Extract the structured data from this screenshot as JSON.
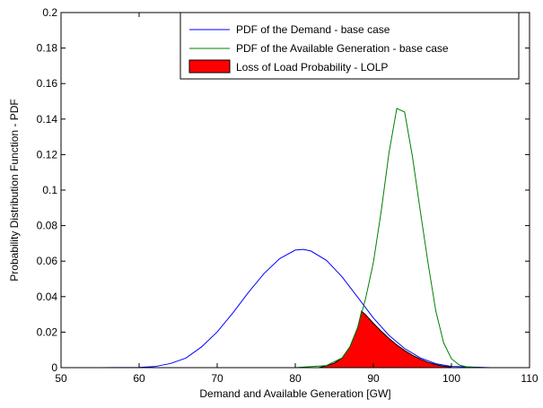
{
  "chart_data": {
    "type": "line",
    "title": "",
    "xlabel": "Demand and Available Generation [GW]",
    "ylabel": "Probability Distribution Function - PDF",
    "xlim": [
      50,
      110
    ],
    "ylim": [
      0,
      0.2
    ],
    "x_ticks": [
      50,
      60,
      70,
      80,
      90,
      100,
      110
    ],
    "y_ticks": [
      0,
      0.02,
      0.04,
      0.06,
      0.08,
      0.1,
      0.12,
      0.14,
      0.16,
      0.18,
      0.2
    ],
    "x_tick_labels": [
      "50",
      "60",
      "70",
      "80",
      "90",
      "100",
      "110"
    ],
    "y_tick_labels": [
      "0",
      "0.02",
      "0.04",
      "0.06",
      "0.08",
      "0.1",
      "0.12",
      "0.14",
      "0.16",
      "0.18",
      "0.2"
    ],
    "grid": false,
    "legend_position": "top-right",
    "series": [
      {
        "name": "PDF of the Demand - base case",
        "kind": "line",
        "color": "#0000ff",
        "x": [
          50,
          55,
          60,
          62,
          64,
          66,
          68,
          70,
          72,
          74,
          76,
          78,
          80,
          81,
          82,
          84,
          86,
          88,
          90,
          92,
          94,
          96,
          98,
          100,
          105,
          110
        ],
        "y": [
          0.0,
          0.0,
          0.0001,
          0.0006,
          0.0023,
          0.0054,
          0.0117,
          0.0201,
          0.0308,
          0.0424,
          0.053,
          0.0614,
          0.0662,
          0.0666,
          0.0657,
          0.0604,
          0.0511,
          0.0396,
          0.028,
          0.0182,
          0.0108,
          0.0055,
          0.0022,
          0.0007,
          0.0,
          0.0
        ]
      },
      {
        "name": "PDF of the Available Generation - base case",
        "kind": "line",
        "color": "#008000",
        "x": [
          50,
          80,
          84,
          86,
          87,
          88,
          89,
          90,
          91,
          92,
          93,
          94,
          95,
          96,
          97,
          98,
          99,
          100,
          101,
          102,
          104,
          110
        ],
        "y": [
          0.0,
          0.0,
          0.0012,
          0.0055,
          0.0118,
          0.0227,
          0.0388,
          0.0592,
          0.088,
          0.121,
          0.146,
          0.144,
          0.119,
          0.0885,
          0.059,
          0.0318,
          0.014,
          0.005,
          0.0015,
          0.0004,
          0.0,
          0.0
        ]
      },
      {
        "name": "Loss of Load Probability - LOLP",
        "kind": "area",
        "color": "#ff0000",
        "x": [
          83,
          84,
          85,
          86,
          87,
          88,
          88.5,
          89,
          90,
          91,
          92,
          93,
          94,
          95,
          96,
          97,
          98,
          99,
          100
        ],
        "y": [
          0.0,
          0.0011,
          0.0025,
          0.0055,
          0.0118,
          0.0227,
          0.0318,
          0.0298,
          0.025,
          0.0205,
          0.0165,
          0.0128,
          0.0097,
          0.007,
          0.0048,
          0.003,
          0.0017,
          0.0008,
          0.0003
        ]
      }
    ]
  }
}
